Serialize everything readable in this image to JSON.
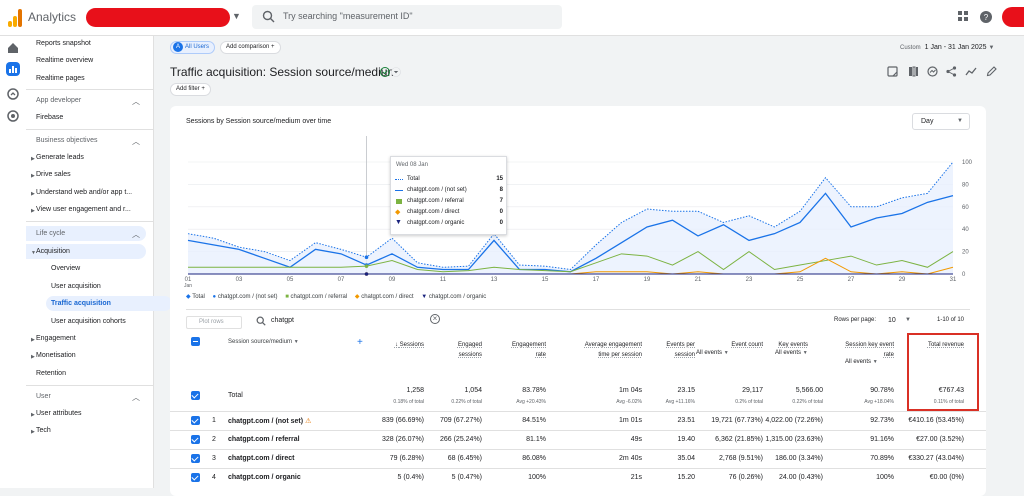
{
  "app": {
    "name": "Analytics"
  },
  "search": {
    "placeholder": "Try searching \"measurement ID\""
  },
  "sidebar": {
    "top_items": [
      "Reports snapshot",
      "Realtime overview",
      "Realtime pages"
    ],
    "app_developer": {
      "heading": "App developer",
      "items": [
        "Firebase"
      ]
    },
    "business_objectives": {
      "heading": "Business objectives",
      "items": [
        "Generate leads",
        "Drive sales",
        "Understand web and/or app t...",
        "View user engagement and r..."
      ]
    },
    "life_cycle": {
      "heading": "Life cycle",
      "acquisition": "Acquisition",
      "acquisition_items": [
        "Overview",
        "User acquisition",
        "Traffic acquisition",
        "User acquisition cohorts"
      ],
      "items": [
        "Engagement",
        "Monetisation",
        "Retention"
      ]
    },
    "user": {
      "heading": "User",
      "items": [
        "User attributes",
        "Tech"
      ]
    }
  },
  "header": {
    "comparison_chip": "All Users",
    "comparison_avatar": "A",
    "add_comparison": "Add comparison",
    "title": "Traffic acquisition: Session source/medium",
    "add_filter": "Add filter",
    "date_label": "Custom",
    "date_range": "1 Jan - 31 Jan 2025"
  },
  "chart": {
    "title": "Sessions by Session source/medium over time",
    "granularity": "Day",
    "tooltip": {
      "date": "Wed 08 Jan",
      "rows": [
        {
          "label": "Total",
          "value": "15"
        },
        {
          "label": "chatgpt.com / (not set)",
          "value": "8"
        },
        {
          "label": "chatgpt.com / referral",
          "value": "7"
        },
        {
          "label": "chatgpt.com / direct",
          "value": "0"
        },
        {
          "label": "chatgpt.com / organic",
          "value": "0"
        }
      ]
    },
    "legend": [
      "Total",
      "chatgpt.com / (not set)",
      "chatgpt.com / referral",
      "chatgpt.com / direct",
      "chatgpt.com / organic"
    ],
    "colors": {
      "total": "#1a73e8",
      "not_set": "#1a73e8",
      "referral": "#7cb342",
      "direct": "#f29900",
      "organic": "#1a237e"
    }
  },
  "chart_data": {
    "type": "line",
    "x": [
      "01 Jan",
      "02",
      "03",
      "04",
      "05",
      "06",
      "07",
      "08",
      "09",
      "10",
      "11",
      "12",
      "13",
      "14",
      "15",
      "16",
      "17",
      "18",
      "19",
      "20",
      "21",
      "22",
      "23",
      "24",
      "25",
      "26",
      "27",
      "28",
      "29",
      "30",
      "31"
    ],
    "x_tick_labels": [
      "01",
      "03",
      "05",
      "07",
      "09",
      "11",
      "13",
      "15",
      "17",
      "19",
      "21",
      "23",
      "25",
      "27",
      "29",
      "31"
    ],
    "x_tick_sublabel": "Jan",
    "ylim": [
      0,
      100
    ],
    "y_ticks": [
      0,
      20,
      40,
      60,
      80,
      100
    ],
    "series": [
      {
        "name": "Total",
        "values": [
          36,
          32,
          24,
          20,
          12,
          28,
          22,
          15,
          32,
          10,
          6,
          7,
          36,
          8,
          7,
          4,
          26,
          46,
          58,
          56,
          56,
          46,
          52,
          42,
          56,
          86,
          60,
          60,
          68,
          72,
          100
        ]
      },
      {
        "name": "chatgpt.com / (not set)",
        "values": [
          30,
          26,
          22,
          14,
          6,
          22,
          18,
          8,
          18,
          6,
          4,
          4,
          30,
          4,
          4,
          2,
          14,
          28,
          42,
          48,
          34,
          44,
          30,
          36,
          46,
          72,
          42,
          50,
          54,
          64,
          70
        ]
      },
      {
        "name": "chatgpt.com / referral",
        "values": [
          6,
          6,
          6,
          6,
          6,
          6,
          6,
          7,
          12,
          4,
          2,
          3,
          6,
          4,
          3,
          2,
          10,
          18,
          16,
          8,
          20,
          4,
          20,
          4,
          8,
          12,
          16,
          8,
          12,
          6,
          20
        ]
      },
      {
        "name": "chatgpt.com / direct",
        "values": [
          0,
          0,
          0,
          0,
          0,
          0,
          0,
          0,
          0,
          0,
          0,
          0,
          0,
          0,
          0,
          0,
          2,
          2,
          2,
          0,
          2,
          0,
          0,
          0,
          2,
          14,
          2,
          0,
          2,
          0,
          6
        ]
      },
      {
        "name": "chatgpt.com / organic",
        "values": [
          0,
          0,
          0,
          0,
          0,
          0,
          0,
          0,
          0,
          0,
          0,
          0,
          0,
          0,
          0,
          0,
          0,
          0,
          0,
          0,
          0,
          0,
          0,
          0,
          0,
          0,
          0,
          0,
          0,
          0,
          0
        ]
      }
    ]
  },
  "table": {
    "plot_rows": "Plot rows",
    "search_value": "chatgpt",
    "rows_per_page_label": "Rows per page:",
    "rows_per_page": "10",
    "pagination": "1-10 of 10",
    "dimension_header": "Session source/medium",
    "headers": [
      "Sessions",
      "Engaged sessions",
      "Engagement rate",
      "Average engagement time per session",
      "Events per session",
      "Event count",
      "Key events",
      "Session key event rate",
      "Total revenue"
    ],
    "all_events": "All events",
    "totals": {
      "label": "Total",
      "values": [
        "1,258",
        "1,054",
        "83.78%",
        "1m 04s",
        "23.15",
        "29,117",
        "5,566.00",
        "90.78%",
        "€767.43"
      ],
      "subs": [
        "0.18% of total",
        "0.22% of total",
        "Avg +20.43%",
        "Avg -6.02%",
        "Avg +11.16%",
        "0.2% of total",
        "0.22% of total",
        "Avg +18.04%",
        "0.11% of total"
      ]
    },
    "rows": [
      {
        "num": "1",
        "dim": "chatgpt.com / (not set)",
        "warn": "⚠",
        "values": [
          "839 (66.69%)",
          "709 (67.27%)",
          "84.51%",
          "1m 01s",
          "23.51",
          "19,721 (67.73%)",
          "4,022.00 (72.26%)",
          "92.73%",
          "€410.16 (53.45%)"
        ]
      },
      {
        "num": "2",
        "dim": "chatgpt.com / referral",
        "warn": "",
        "values": [
          "328 (26.07%)",
          "266 (25.24%)",
          "81.1%",
          "49s",
          "19.40",
          "6,362 (21.85%)",
          "1,315.00 (23.63%)",
          "91.16%",
          "€27.00 (3.52%)"
        ]
      },
      {
        "num": "3",
        "dim": "chatgpt.com / direct",
        "warn": "",
        "values": [
          "79 (6.28%)",
          "68 (6.45%)",
          "86.08%",
          "2m 40s",
          "35.04",
          "2,768 (9.51%)",
          "186.00 (3.34%)",
          "70.89%",
          "€330.27 (43.04%)"
        ]
      },
      {
        "num": "4",
        "dim": "chatgpt.com / organic",
        "warn": "",
        "values": [
          "5 (0.4%)",
          "5 (0.47%)",
          "100%",
          "21s",
          "15.20",
          "76 (0.26%)",
          "24.00 (0.43%)",
          "100%",
          "€0.00 (0%)"
        ]
      }
    ]
  }
}
